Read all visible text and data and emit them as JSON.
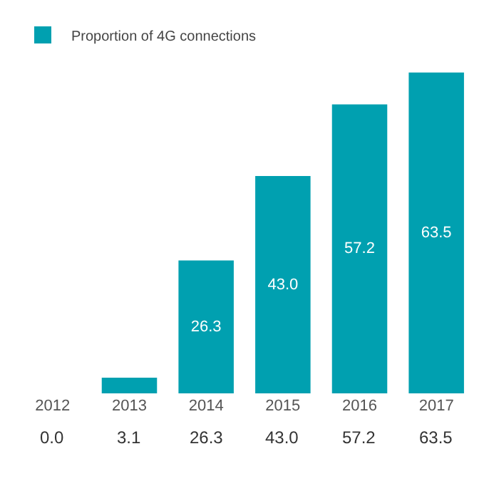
{
  "chart_data": {
    "type": "bar",
    "categories": [
      "2012",
      "2013",
      "2014",
      "2015",
      "2016",
      "2017"
    ],
    "series": [
      {
        "name": "Proportion of 4G connections",
        "color": "#00a0b0",
        "values": [
          0.0,
          3.1,
          26.3,
          43.0,
          57.2,
          63.5
        ],
        "value_labels": [
          "0.0",
          "3.1",
          "26.3",
          "43.0",
          "57.2",
          "63.5"
        ]
      }
    ],
    "legend": "top left"
  }
}
